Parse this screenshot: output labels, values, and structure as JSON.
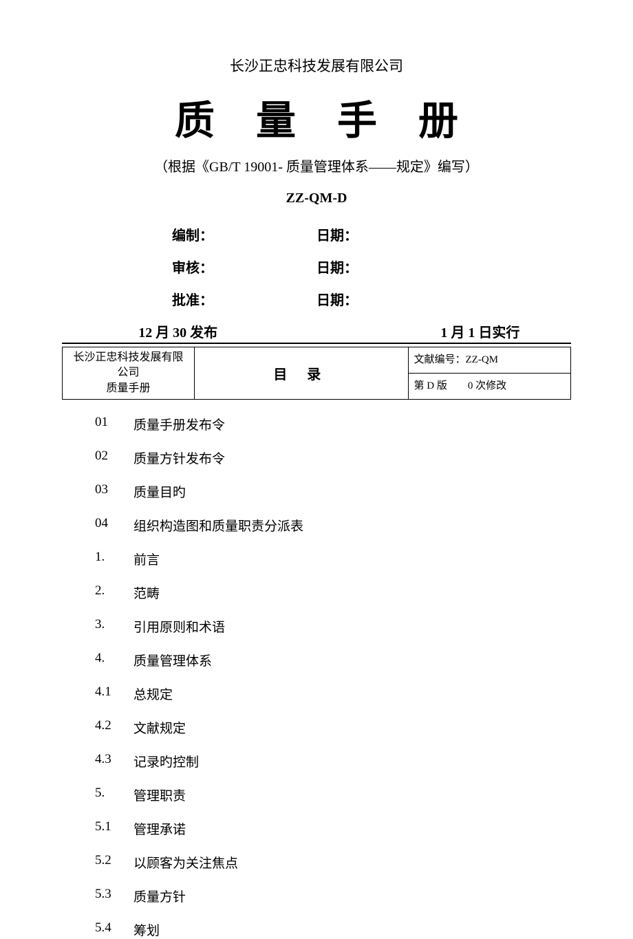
{
  "header": {
    "company": "长沙正忠科技发展有限公司",
    "title": "质量手册",
    "subtitle": "（根据《GB/T 19001-  质量管理体系——规定》编写）",
    "docCode": "ZZ-QM-D"
  },
  "signoff": {
    "row1": {
      "left": "编制：",
      "right": "日期："
    },
    "row2": {
      "left": "审核：",
      "right": "日期："
    },
    "row3": {
      "left": "批准：",
      "right": "日期："
    }
  },
  "dates": {
    "publish": "12 月 30 发布",
    "effective": "1 月 1 日实行"
  },
  "infobox": {
    "col1_line1": "长沙正忠科技发展有限公司",
    "col1_line2": "质量手册",
    "col2": "目 录",
    "col3_line1": "文献编号：ZZ-QM",
    "col3_line2": "第 D 版　　0 次修改"
  },
  "toc": [
    {
      "num": "01",
      "text": "质量手册发布令"
    },
    {
      "num": "02",
      "text": "质量方针发布令"
    },
    {
      "num": "03",
      "text": "质量目旳"
    },
    {
      "num": "04",
      "text": "组织构造图和质量职责分派表"
    },
    {
      "num": "1.",
      "text": "前言"
    },
    {
      "num": "2.",
      "text": "范畴"
    },
    {
      "num": "3.",
      "text": "引用原则和术语"
    },
    {
      "num": "4.",
      "text": "质量管理体系"
    },
    {
      "num": "4.1",
      "text": "总规定"
    },
    {
      "num": "4.2",
      "text": "文献规定"
    },
    {
      "num": "4.3",
      "text": "记录旳控制"
    },
    {
      "num": "5.",
      "text": "管理职责"
    },
    {
      "num": "5.1",
      "text": "管理承诺"
    },
    {
      "num": "5.2",
      "text": "以顾客为关注焦点"
    },
    {
      "num": "5.3",
      "text": "质量方针"
    },
    {
      "num": "5.4",
      "text": "筹划"
    }
  ],
  "style": {
    "pageWidth": 920,
    "pageHeight": 1302,
    "background": "#ffffff",
    "textColor": "#000000",
    "titleFontSize": 58,
    "bodyFontSize": 19,
    "borderColor": "#000000"
  }
}
